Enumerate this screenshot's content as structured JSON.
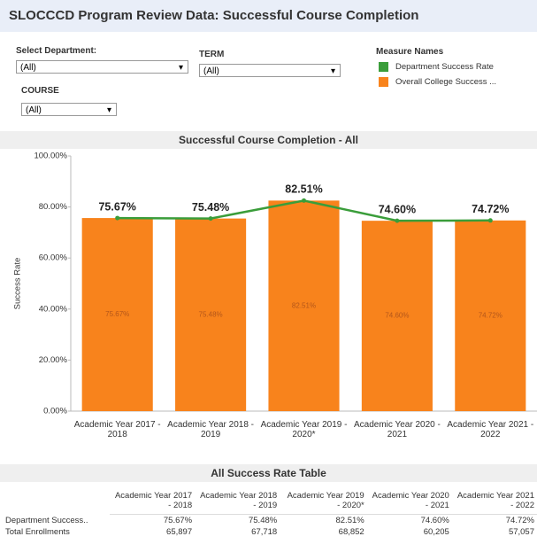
{
  "header": {
    "title": "SLOCCCD Program Review Data: Successful Course Completion"
  },
  "filters": [
    {
      "label": "Select Department:",
      "value": "(All)"
    },
    {
      "label": "TERM",
      "value": "(All)"
    },
    {
      "label": "COURSE",
      "value": "(All)"
    }
  ],
  "chart_data": {
    "type": "bar_line",
    "title": "Successful Course Completion - All",
    "ylabel": "Success Rate",
    "legend_title": "Measure Names",
    "categories": [
      "Academic Year 2017 - 2018",
      "Academic Year 2018 - 2019",
      "Academic Year 2019 - 2020*",
      "Academic Year 2020 - 2021",
      "Academic Year 2021 - 2022"
    ],
    "series": [
      {
        "name": "Department Success Rate",
        "type": "line",
        "color": "#3a9d3a",
        "values": [
          75.67,
          75.48,
          82.51,
          74.6,
          74.72
        ],
        "value_labels": [
          "75.67%",
          "75.48%",
          "82.51%",
          "74.60%",
          "74.72%"
        ]
      },
      {
        "name": "Overall College Success ...",
        "type": "bar",
        "color": "#f8831c",
        "values": [
          75.67,
          75.48,
          82.51,
          74.6,
          74.72
        ],
        "value_labels": [
          "75.67%",
          "75.48%",
          "82.51%",
          "74.60%",
          "74.72%"
        ]
      }
    ],
    "ylim": [
      0,
      100
    ],
    "yticks": [
      {
        "value": 0,
        "label": "0.00%"
      },
      {
        "value": 20,
        "label": "20.00%"
      },
      {
        "value": 40,
        "label": "40.00%"
      },
      {
        "value": 60,
        "label": "60.00%"
      },
      {
        "value": 80,
        "label": "80.00%"
      },
      {
        "value": 100,
        "label": "100.00%"
      }
    ]
  },
  "table": {
    "title": "All Success Rate Table",
    "row_labels": [
      "Department Success..",
      "Total Enrollments"
    ],
    "enrollments": [
      "65,897",
      "67,718",
      "68,852",
      "60,205",
      "57,057"
    ]
  }
}
